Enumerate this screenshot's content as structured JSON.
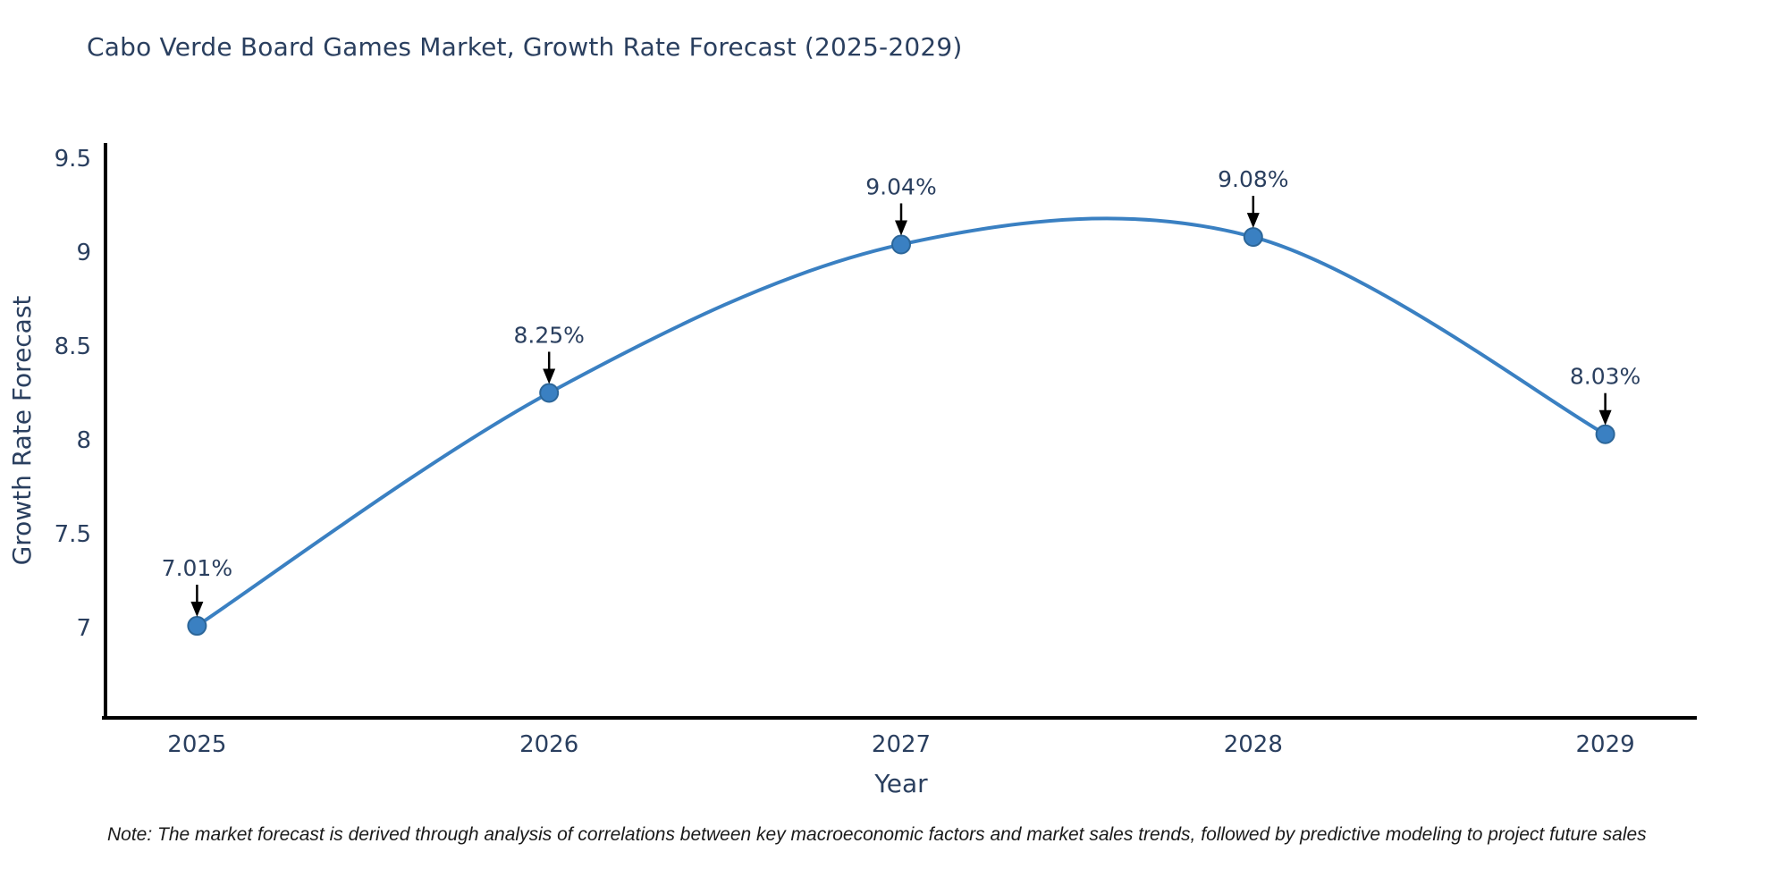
{
  "note": "Note: The market forecast is derived through analysis of correlations between key macroeconomic factors and market sales trends, followed by predictive modeling to project future sales",
  "chart_data": {
    "type": "line",
    "title": "Cabo Verde Board Games Market, Growth Rate Forecast (2025-2029)",
    "xlabel": "Year",
    "ylabel": "Growth Rate Forecast",
    "categories": [
      "2025",
      "2026",
      "2027",
      "2028",
      "2029"
    ],
    "x": [
      2025,
      2026,
      2027,
      2028,
      2029
    ],
    "series": [
      {
        "name": "Growth Rate Forecast",
        "values": [
          7.01,
          8.25,
          9.04,
          9.08,
          8.03
        ]
      }
    ],
    "point_labels": [
      "7.01%",
      "8.25%",
      "9.04%",
      "9.08%",
      "8.03%"
    ],
    "yticks": [
      7,
      7.5,
      8,
      8.5,
      9,
      9.5
    ],
    "ytick_labels": [
      "7",
      "7.5",
      "8",
      "8.5",
      "9",
      "9.5"
    ],
    "xlim": [
      2024.74,
      2029.26
    ],
    "ylim": [
      6.52,
      9.58
    ],
    "line_shape": "spline",
    "grid": false,
    "legend": "none",
    "colors": {
      "line": "#3a80c2",
      "marker_fill": "#3a80c2",
      "marker_edge": "#2c6699",
      "axis": "#000000",
      "text": "#2a3f5f",
      "annotation_text": "#2a3f5f",
      "annotation_arrow": "#000000",
      "background": "#ffffff"
    }
  }
}
